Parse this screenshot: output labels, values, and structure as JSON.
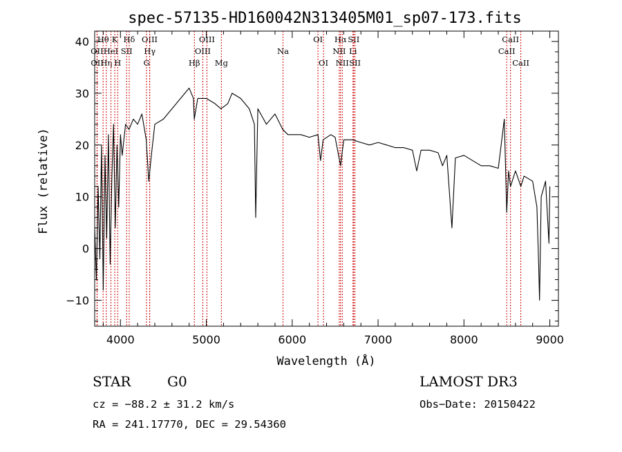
{
  "chart_data": {
    "type": "line",
    "title": "spec-57135-HD160042N313405M01_sp07-173.fits",
    "xlabel": "Wavelength (Å)",
    "ylabel": "Flux (relative)",
    "xlim": [
      3700,
      9100
    ],
    "ylim": [
      -15,
      42
    ],
    "x_ticks": [
      4000,
      5000,
      6000,
      7000,
      8000,
      9000
    ],
    "y_ticks": [
      -10,
      0,
      10,
      20,
      30,
      40
    ],
    "grid": false,
    "series": [
      {
        "name": "flux",
        "points": [
          [
            3700,
            4
          ],
          [
            3720,
            -6
          ],
          [
            3740,
            12
          ],
          [
            3760,
            -2
          ],
          [
            3780,
            20
          ],
          [
            3800,
            -8
          ],
          [
            3820,
            18
          ],
          [
            3840,
            2
          ],
          [
            3860,
            22
          ],
          [
            3880,
            -3
          ],
          [
            3900,
            14
          ],
          [
            3920,
            24
          ],
          [
            3940,
            4
          ],
          [
            3960,
            20
          ],
          [
            3980,
            8
          ],
          [
            4000,
            22
          ],
          [
            4020,
            18
          ],
          [
            4060,
            24
          ],
          [
            4100,
            23
          ],
          [
            4150,
            25
          ],
          [
            4200,
            24
          ],
          [
            4250,
            26
          ],
          [
            4300,
            21
          ],
          [
            4330,
            13
          ],
          [
            4360,
            18
          ],
          [
            4400,
            24
          ],
          [
            4500,
            25
          ],
          [
            4600,
            27
          ],
          [
            4700,
            29
          ],
          [
            4800,
            31
          ],
          [
            4850,
            29
          ],
          [
            4860,
            25
          ],
          [
            4900,
            29
          ],
          [
            5000,
            29
          ],
          [
            5100,
            28
          ],
          [
            5170,
            27
          ],
          [
            5250,
            28
          ],
          [
            5300,
            30
          ],
          [
            5400,
            29
          ],
          [
            5500,
            27
          ],
          [
            5560,
            24
          ],
          [
            5575,
            6
          ],
          [
            5600,
            27
          ],
          [
            5700,
            24
          ],
          [
            5800,
            26
          ],
          [
            5890,
            23
          ],
          [
            5950,
            22
          ],
          [
            6000,
            22
          ],
          [
            6100,
            22
          ],
          [
            6200,
            21.5
          ],
          [
            6300,
            22
          ],
          [
            6330,
            17
          ],
          [
            6360,
            21
          ],
          [
            6450,
            22
          ],
          [
            6500,
            21.5
          ],
          [
            6563,
            16
          ],
          [
            6600,
            21
          ],
          [
            6700,
            21
          ],
          [
            6800,
            20.5
          ],
          [
            6900,
            20
          ],
          [
            7000,
            20.5
          ],
          [
            7100,
            20
          ],
          [
            7200,
            19.5
          ],
          [
            7300,
            19.5
          ],
          [
            7400,
            19
          ],
          [
            7450,
            15
          ],
          [
            7500,
            19
          ],
          [
            7600,
            19
          ],
          [
            7700,
            18.5
          ],
          [
            7750,
            16
          ],
          [
            7800,
            18
          ],
          [
            7830,
            11
          ],
          [
            7860,
            4
          ],
          [
            7900,
            17.5
          ],
          [
            8000,
            18
          ],
          [
            8100,
            17
          ],
          [
            8200,
            16
          ],
          [
            8300,
            16
          ],
          [
            8400,
            15.5
          ],
          [
            8470,
            25
          ],
          [
            8498,
            7
          ],
          [
            8520,
            15
          ],
          [
            8542,
            12
          ],
          [
            8600,
            15
          ],
          [
            8662,
            12
          ],
          [
            8700,
            14
          ],
          [
            8800,
            13
          ],
          [
            8850,
            8
          ],
          [
            8870,
            -3
          ],
          [
            8880,
            -10
          ],
          [
            8900,
            10
          ],
          [
            8950,
            13
          ],
          [
            8990,
            1
          ],
          [
            9000,
            12
          ]
        ]
      }
    ],
    "line_markers": [
      {
        "label": "Hθ",
        "wavelength": 3798,
        "row": 1
      },
      {
        "label": "OII",
        "wavelength": 3727,
        "row": 2
      },
      {
        "label": "OII",
        "wavelength": 3729,
        "row": 3
      },
      {
        "label": "Hη",
        "wavelength": 3835,
        "row": 3
      },
      {
        "label": "HeI",
        "wavelength": 3889,
        "row": 2
      },
      {
        "label": "K",
        "wavelength": 3934,
        "row": 1
      },
      {
        "label": "H",
        "wavelength": 3968,
        "row": 3
      },
      {
        "label": "SII",
        "wavelength": 4072,
        "row": 2
      },
      {
        "label": "Hδ",
        "wavelength": 4102,
        "row": 1
      },
      {
        "label": "OIII",
        "wavelength": 4340,
        "row": 1
      },
      {
        "label": "Hγ",
        "wavelength": 4341,
        "row": 2
      },
      {
        "label": "G",
        "wavelength": 4304,
        "row": 3
      },
      {
        "label": "Hβ",
        "wavelength": 4861,
        "row": 3
      },
      {
        "label": "OIII",
        "wavelength": 5007,
        "row": 1
      },
      {
        "label": "OIII",
        "wavelength": 4959,
        "row": 2
      },
      {
        "label": "Mg",
        "wavelength": 5175,
        "row": 3
      },
      {
        "label": "Na",
        "wavelength": 5893,
        "row": 2
      },
      {
        "label": "OI",
        "wavelength": 6300,
        "row": 1
      },
      {
        "label": "OI",
        "wavelength": 6364,
        "row": 3
      },
      {
        "label": "Hα",
        "wavelength": 6563,
        "row": 1
      },
      {
        "label": "SII",
        "wavelength": 6716,
        "row": 1
      },
      {
        "label": "NII",
        "wavelength": 6548,
        "row": 2
      },
      {
        "label": "Li",
        "wavelength": 6708,
        "row": 2
      },
      {
        "label": "NII",
        "wavelength": 6583,
        "row": 3
      },
      {
        "label": "SII",
        "wavelength": 6731,
        "row": 3
      },
      {
        "label": "CaII",
        "wavelength": 8542,
        "row": 1
      },
      {
        "label": "CaII",
        "wavelength": 8498,
        "row": 2
      },
      {
        "label": "CaII",
        "wavelength": 8662,
        "row": 3
      }
    ],
    "line_color": "#cc0000",
    "trace_color": "#000000"
  },
  "info": {
    "object_class": "STAR",
    "subclass": "G0",
    "survey": "LAMOST DR3",
    "redshift": "cz = −88.2 ± 31.2 km/s",
    "obs_date": "Obs−Date: 20150422",
    "coordinates": "RA = 241.17770, DEC =  29.54360"
  }
}
